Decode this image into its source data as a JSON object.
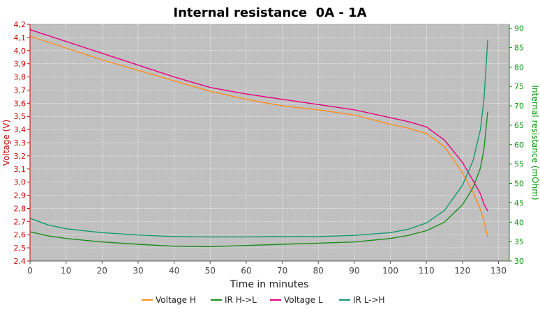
{
  "chart_data": {
    "type": "line",
    "title": "Internal resistance  0A - 1A",
    "xlabel": "Time in minutes",
    "ylabel_left": "Voltage (V)",
    "ylabel_right": "Internal resistance (mOhm)",
    "xlim": [
      0,
      133
    ],
    "ylim_left": [
      2.4,
      4.2
    ],
    "ylim_right": [
      30,
      91
    ],
    "x_ticks": [
      "0",
      "10",
      "20",
      "30",
      "40",
      "50",
      "60",
      "70",
      "80",
      "90",
      "100",
      "110",
      "120",
      "130"
    ],
    "y_left_ticks": [
      "2,4",
      "2,5",
      "2,6",
      "2,7",
      "2,8",
      "2,9",
      "3,0",
      "3,1",
      "3,2",
      "3,3",
      "3,4",
      "3,5",
      "3,6",
      "3,7",
      "3,8",
      "3,9",
      "4,0",
      "4,1",
      "4,2"
    ],
    "y_right_ticks": [
      "30",
      "35",
      "40",
      "45",
      "50",
      "55",
      "60",
      "65",
      "70",
      "75",
      "80",
      "85",
      "90"
    ],
    "grid": true,
    "legend_position": "bottom",
    "series": [
      {
        "name": "Voltage H",
        "axis": "left",
        "color": "#ff8c1a",
        "x": [
          0,
          10,
          20,
          30,
          40,
          50,
          60,
          70,
          80,
          90,
          100,
          105,
          110,
          115,
          120,
          123,
          125,
          126,
          127
        ],
        "y": [
          4.11,
          4.02,
          3.93,
          3.85,
          3.77,
          3.69,
          3.63,
          3.58,
          3.55,
          3.51,
          3.44,
          3.41,
          3.37,
          3.27,
          3.07,
          2.92,
          2.79,
          2.7,
          2.58
        ]
      },
      {
        "name": "IR H->L",
        "axis": "right",
        "color": "#1a8c1a",
        "x": [
          0,
          5,
          10,
          20,
          30,
          40,
          50,
          60,
          70,
          80,
          90,
          100,
          105,
          110,
          115,
          120,
          123,
          125,
          126,
          127
        ],
        "y": [
          37.5,
          36.5,
          35.8,
          34.9,
          34.3,
          33.8,
          33.7,
          34.0,
          34.3,
          34.6,
          34.9,
          35.8,
          36.6,
          37.8,
          40.0,
          44.5,
          49.0,
          54.0,
          59.0,
          68.5
        ]
      },
      {
        "name": "Voltage L",
        "axis": "left",
        "color": "#e6007e",
        "x": [
          0,
          10,
          20,
          30,
          40,
          50,
          60,
          70,
          80,
          90,
          100,
          105,
          110,
          115,
          120,
          123,
          125,
          126,
          127
        ],
        "y": [
          4.16,
          4.07,
          3.98,
          3.89,
          3.8,
          3.72,
          3.67,
          3.63,
          3.59,
          3.55,
          3.49,
          3.46,
          3.42,
          3.32,
          3.15,
          3.01,
          2.91,
          2.83,
          2.78
        ]
      },
      {
        "name": "IR L->H",
        "axis": "right",
        "color": "#0f9a6e",
        "x": [
          0,
          5,
          10,
          20,
          30,
          40,
          50,
          60,
          70,
          80,
          90,
          100,
          105,
          110,
          115,
          120,
          123,
          125,
          126,
          127
        ],
        "y": [
          41.0,
          39.3,
          38.3,
          37.3,
          36.7,
          36.3,
          36.2,
          36.2,
          36.3,
          36.3,
          36.6,
          37.3,
          38.2,
          39.8,
          43.0,
          49.5,
          56.0,
          64.0,
          72.0,
          87.0
        ]
      }
    ]
  }
}
